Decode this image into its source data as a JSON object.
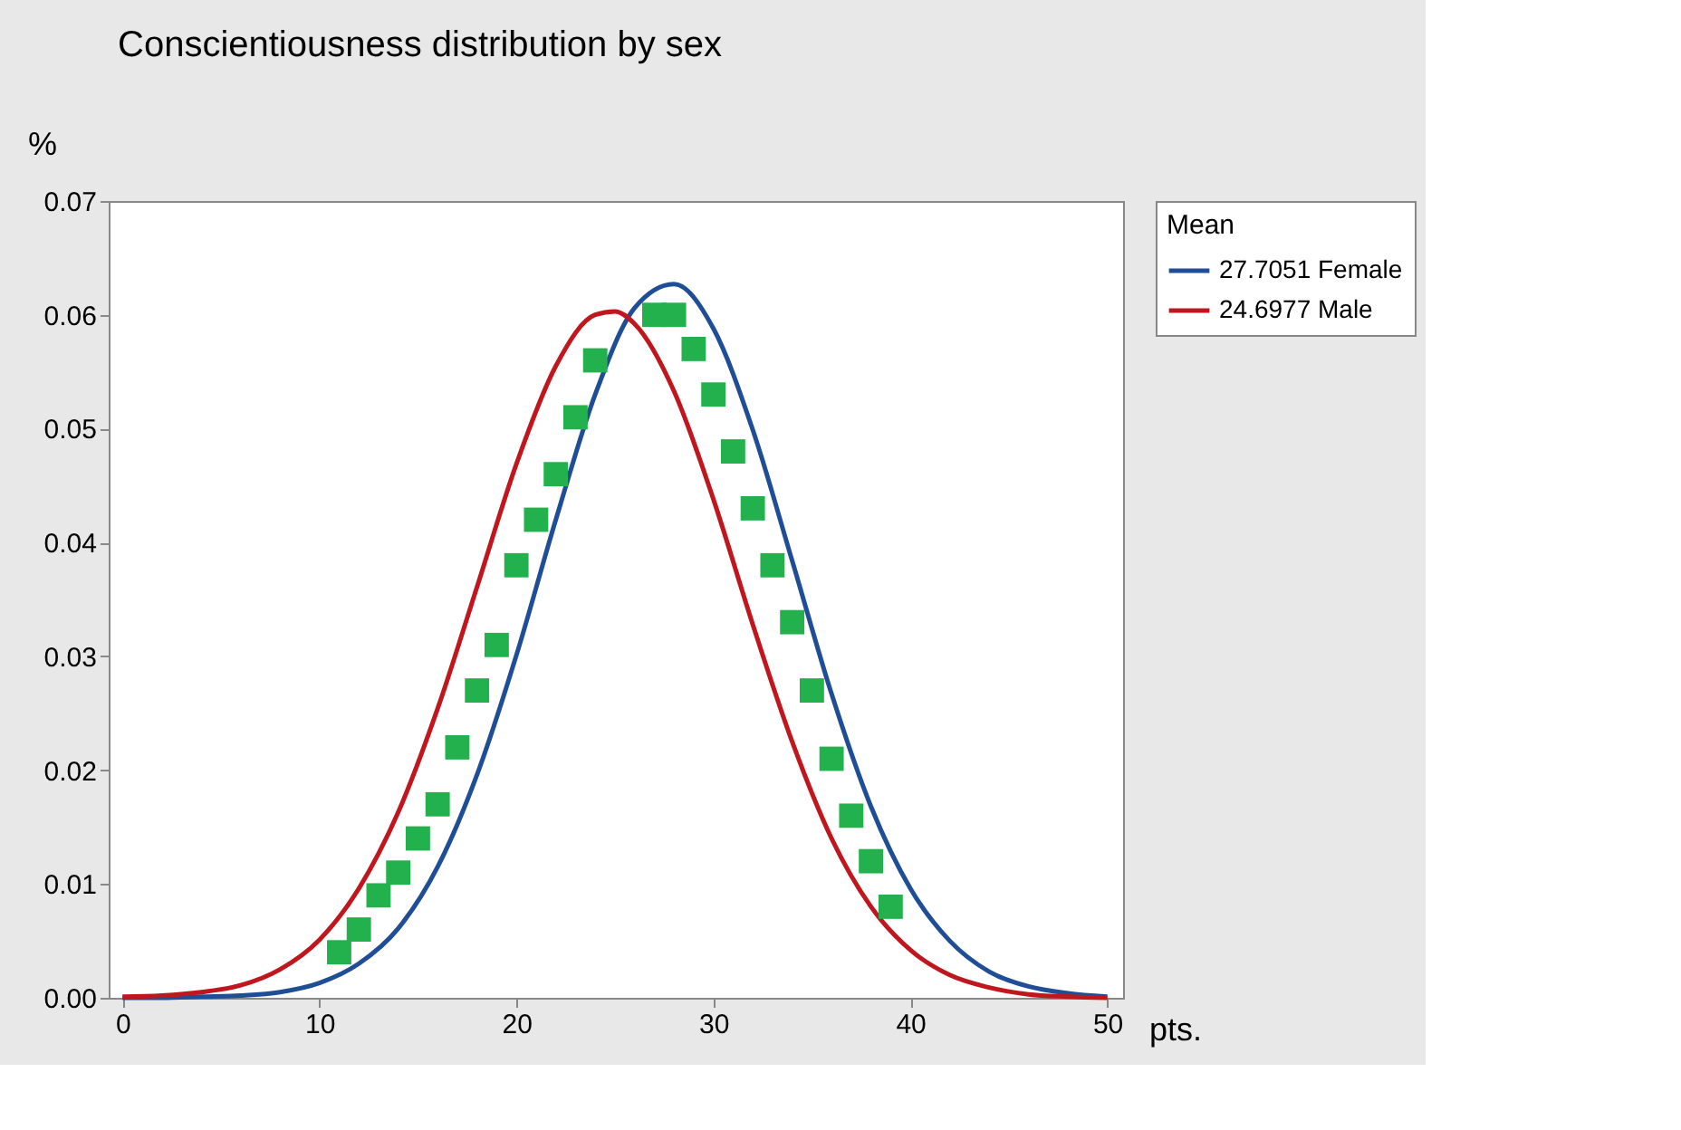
{
  "chart_data": {
    "type": "line",
    "title": "Conscientiousness distribution by sex",
    "xlabel": "pts.",
    "ylabel": "%",
    "legend_title": "Mean",
    "legend": "top right",
    "grid": false,
    "xlim": [
      -0.7,
      50.8
    ],
    "xticks": [
      0,
      10,
      20,
      30,
      40,
      50
    ],
    "ylim": [
      0,
      0.07
    ],
    "yticks": [
      {
        "value": 0,
        "label": "0.00"
      },
      {
        "value": 0.01,
        "label": "0.01"
      },
      {
        "value": 0.02,
        "label": "0.02"
      },
      {
        "value": 0.03,
        "label": "0.03"
      },
      {
        "value": 0.04,
        "label": "0.04"
      },
      {
        "value": 0.05,
        "label": "0.05"
      },
      {
        "value": 0.06,
        "label": "0.06"
      },
      {
        "value": 0.07,
        "label": "0.07"
      }
    ],
    "series": [
      {
        "name": "27.7051 Female",
        "color": "#1f4e96",
        "line_style": "solid",
        "x": [
          0,
          2,
          4,
          6,
          8,
          10,
          12,
          14,
          16,
          18,
          20,
          22,
          24,
          26,
          28,
          30,
          32,
          34,
          36,
          38,
          40,
          42,
          44,
          46,
          48,
          50
        ],
        "values": [
          0.0,
          0.0,
          0.0001,
          0.0002,
          0.0005,
          0.0013,
          0.003,
          0.0061,
          0.0115,
          0.0196,
          0.0301,
          0.042,
          0.053,
          0.0606,
          0.0627,
          0.0588,
          0.0499,
          0.0384,
          0.0267,
          0.0168,
          0.0096,
          0.005,
          0.0023,
          0.001,
          0.0004,
          0.0001
        ]
      },
      {
        "name": "24.6977 Male",
        "color": "#c0171e",
        "line_style": "solid",
        "x": [
          0,
          2,
          4,
          6,
          8,
          10,
          12,
          14,
          16,
          18,
          20,
          22,
          24,
          25,
          26,
          28,
          30,
          32,
          34,
          36,
          38,
          40,
          42,
          44,
          46,
          48,
          50
        ],
        "values": [
          0.0001,
          0.0002,
          0.0005,
          0.0011,
          0.0025,
          0.0051,
          0.0096,
          0.0163,
          0.0254,
          0.0361,
          0.0469,
          0.0555,
          0.06,
          0.0603,
          0.0592,
          0.0533,
          0.0438,
          0.0328,
          0.0225,
          0.014,
          0.008,
          0.0042,
          0.002,
          0.0009,
          0.0003,
          0.0001,
          0.0
        ]
      },
      {
        "color": "#22b14c",
        "type": "scatter",
        "marker": "square",
        "x": [
          11,
          12,
          13,
          14,
          15,
          16,
          17,
          18,
          19,
          20,
          21,
          22,
          23,
          24,
          27,
          28,
          29,
          30,
          31,
          32,
          33,
          34,
          35,
          36,
          37,
          38,
          39
        ],
        "values": [
          0.004,
          0.006,
          0.009,
          0.011,
          0.014,
          0.017,
          0.022,
          0.027,
          0.031,
          0.038,
          0.042,
          0.046,
          0.051,
          0.056,
          0.06,
          0.06,
          0.057,
          0.053,
          0.048,
          0.043,
          0.038,
          0.033,
          0.027,
          0.021,
          0.016,
          0.012,
          0.008
        ]
      }
    ]
  }
}
